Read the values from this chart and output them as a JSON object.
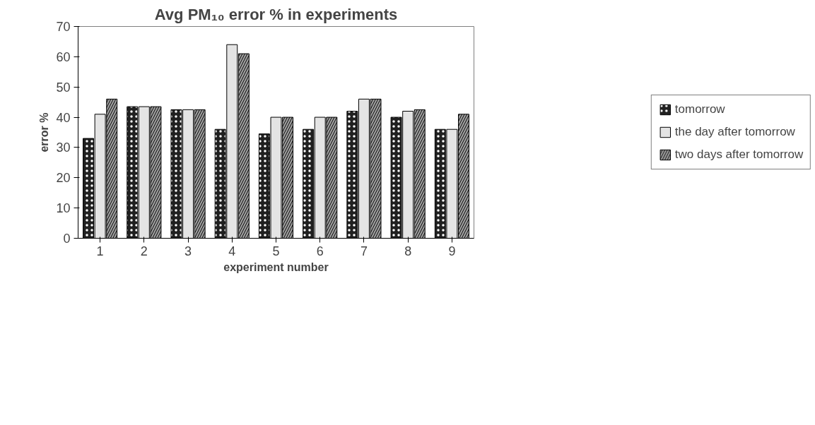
{
  "chart_data": {
    "type": "bar",
    "title": "Avg PM₁₀ error % in experiments",
    "xlabel": "experiment number",
    "ylabel": "error %",
    "categories": [
      "1",
      "2",
      "3",
      "4",
      "5",
      "6",
      "7",
      "8",
      "9"
    ],
    "series": [
      {
        "name": "tomorrow",
        "color": "#202020",
        "values": [
          33,
          43.5,
          42.5,
          36,
          34.5,
          36,
          42,
          40,
          36
        ]
      },
      {
        "name": "the day after tomorrow",
        "color": "#e4e4e4",
        "values": [
          41,
          43.5,
          42.5,
          64,
          40,
          40,
          46,
          42,
          36
        ]
      },
      {
        "name": "two days after tomorrow",
        "color": "#a0a0a0",
        "values": [
          46,
          43.5,
          42.5,
          61,
          40,
          40,
          46,
          42.5,
          41
        ]
      }
    ],
    "ylim": [
      0,
      70
    ],
    "yticks": [
      0,
      10,
      20,
      30,
      40,
      50,
      60,
      70
    ],
    "grid": false,
    "legend": "right"
  }
}
